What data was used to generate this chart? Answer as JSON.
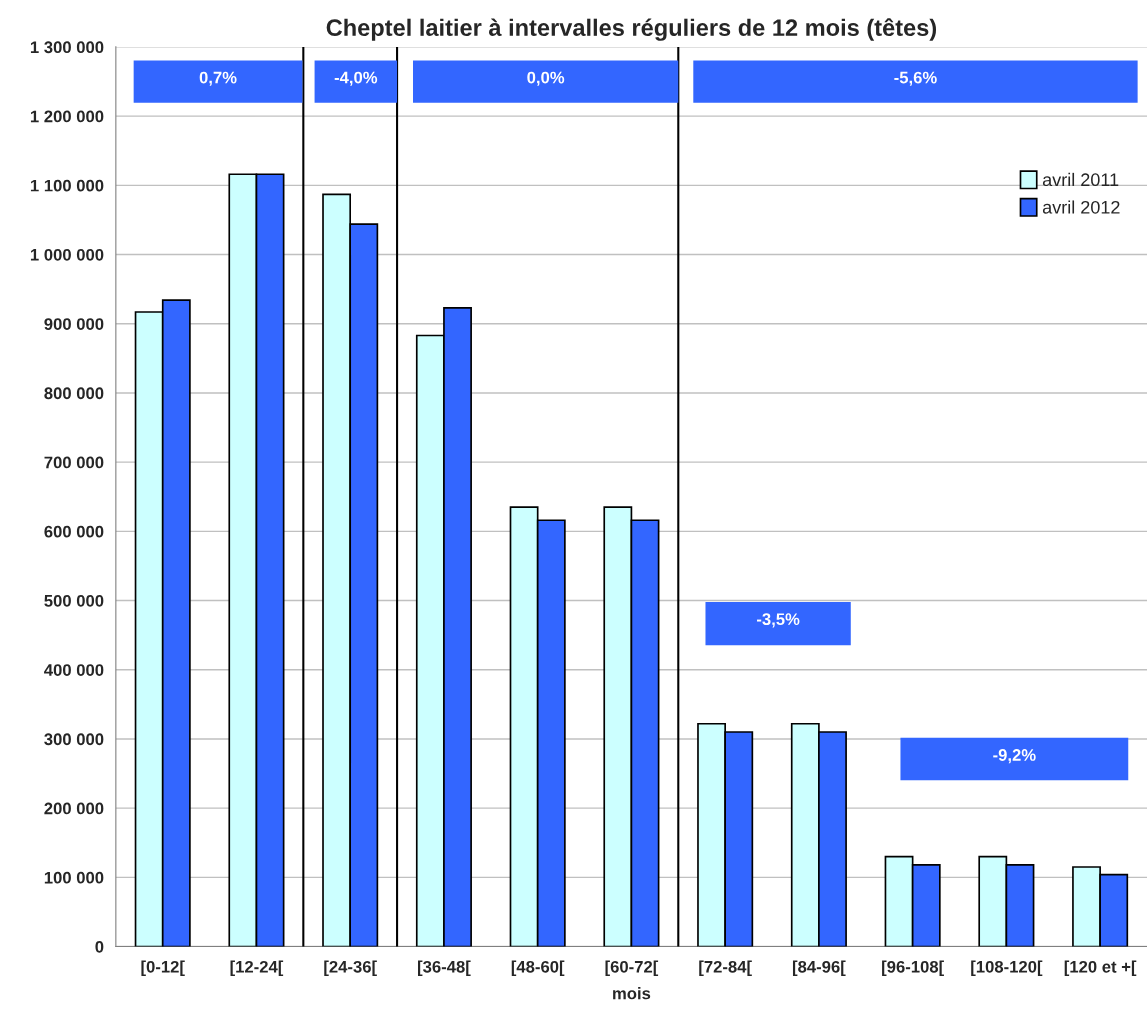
{
  "chart_data": {
    "type": "bar",
    "title": "Cheptel laitier à intervalles réguliers de 12 mois (têtes)",
    "xlabel": "mois",
    "categories": [
      "[0-12[",
      "[12-24[",
      "[24-36[",
      "[36-48[",
      "[48-60[",
      "[60-72[",
      "[72-84[",
      "[84-96[",
      "[96-108[",
      "[108-120[",
      "[120 et +["
    ],
    "series": [
      {
        "name": "avril 2011",
        "color": "#ccffff",
        "values": [
          917000,
          1116000,
          1087000,
          883000,
          635000,
          635000,
          322000,
          322000,
          130000,
          130000,
          115000
        ]
      },
      {
        "name": "avril 2012",
        "color": "#3366ff",
        "values": [
          934000,
          1116000,
          1044000,
          923000,
          616000,
          616000,
          310000,
          310000,
          118000,
          118000,
          104000
        ]
      }
    ],
    "ylim": [
      0,
      1300000
    ],
    "yticks": [
      0,
      {
        "value": 100000,
        "label": "100 000"
      },
      {
        "value": 200000,
        "label": "200 000"
      },
      {
        "value": 300000,
        "label": "300 000"
      },
      {
        "value": 400000,
        "label": "400 000"
      },
      {
        "value": 500000,
        "label": "500 000"
      },
      {
        "value": 600000,
        "label": "600 000"
      },
      {
        "value": 700000,
        "label": "700 000"
      },
      {
        "value": 800000,
        "label": "800 000"
      },
      {
        "value": 900000,
        "label": "900 000"
      },
      {
        "value": 1000000,
        "label": "1 000 000"
      },
      {
        "value": 1100000,
        "label": "1 100 000"
      },
      {
        "value": 1200000,
        "label": "1 200 000"
      },
      {
        "value": 1300000,
        "label": "1 300 000"
      }
    ],
    "annotations": [
      "0,7%",
      "-4,0%",
      "0,0%",
      "-5,6%",
      "-3,5%",
      "-9,2%"
    ],
    "grid": "y",
    "legend": "top right"
  }
}
